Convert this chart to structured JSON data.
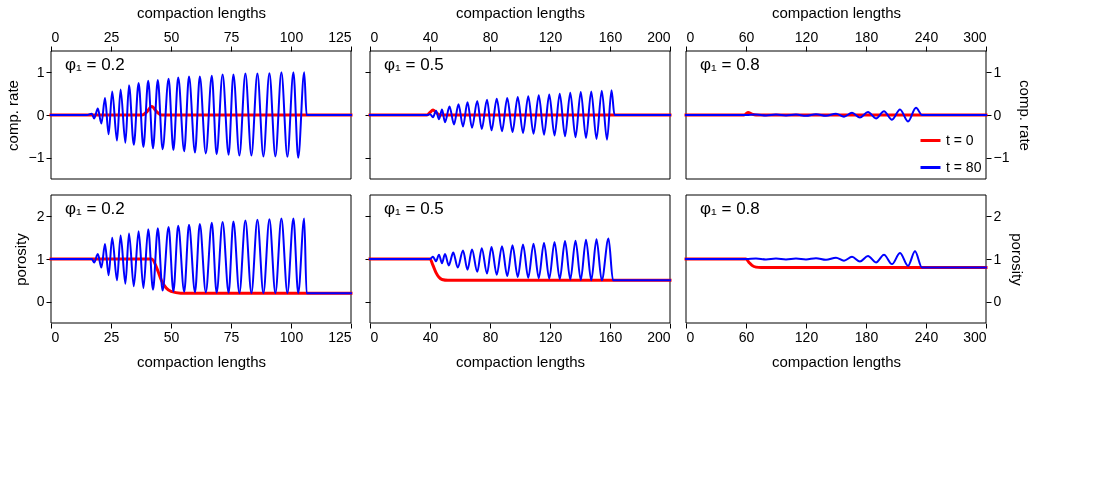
{
  "chart_data": [
    {
      "type": "line",
      "xlabel": "compaction lengths",
      "ylabel": "comp. rate",
      "xlim": [
        0,
        125
      ],
      "xticks": [
        0,
        25,
        50,
        75,
        100,
        125
      ],
      "ylim": [
        -1.5,
        1.5
      ],
      "yticks": [
        -1,
        0,
        1
      ],
      "grid": false,
      "legend": false,
      "annotations": [
        "φ₁ = 0.2"
      ],
      "series": [
        {
          "color": "#ff0000",
          "x": [
            0,
            38,
            40,
            42,
            44,
            46,
            125
          ],
          "values": [
            0,
            0,
            0.08,
            0.2,
            0.08,
            0,
            0
          ]
        },
        {
          "color": "#0000ff",
          "x": [
            0,
            15,
            17,
            18,
            19.5,
            21,
            22.5,
            24,
            25.5,
            27.5,
            29,
            31,
            32.5,
            34.5,
            36.5,
            38.5,
            40.5,
            42.5,
            44.5,
            46.5,
            49,
            51,
            53,
            55.5,
            57.5,
            60,
            62,
            64.5,
            67,
            69,
            71.5,
            74,
            76,
            78.5,
            81,
            83.5,
            86,
            88.5,
            91,
            93.5,
            96,
            98.5,
            101,
            103,
            105.5,
            106.5,
            125
          ],
          "values": [
            0,
            0,
            0.03,
            -0.08,
            0.15,
            -0.2,
            0.4,
            -0.45,
            0.55,
            -0.6,
            0.6,
            -0.65,
            0.7,
            -0.7,
            0.75,
            -0.75,
            0.8,
            -0.78,
            0.82,
            -0.8,
            0.85,
            -0.82,
            0.88,
            -0.85,
            0.9,
            -0.88,
            0.9,
            -0.9,
            0.92,
            -0.92,
            0.95,
            -0.93,
            0.95,
            -0.95,
            0.97,
            -0.95,
            0.97,
            -0.97,
            0.98,
            -0.97,
            1.0,
            -0.98,
            1.0,
            -1.0,
            1.0,
            0,
            0
          ]
        }
      ]
    },
    {
      "type": "line",
      "xlabel": "compaction lengths",
      "xlim": [
        0,
        200
      ],
      "xticks": [
        0,
        40,
        80,
        120,
        160,
        200
      ],
      "ylim": [
        -1.5,
        1.5
      ],
      "yticks": [
        -1,
        0,
        1
      ],
      "grid": false,
      "legend": false,
      "tick_labels": "x",
      "annotations": [
        "φ₁ = 0.5"
      ],
      "series": [
        {
          "color": "#ff0000",
          "x": [
            0,
            38,
            40,
            42,
            44,
            47,
            200
          ],
          "values": [
            0,
            0,
            0.06,
            0.12,
            0.06,
            0,
            0
          ]
        },
        {
          "color": "#0000ff",
          "x": [
            0,
            38,
            40,
            42,
            44,
            46,
            48,
            50,
            53,
            56,
            59,
            62,
            65,
            68,
            71.5,
            74.5,
            78,
            81,
            84.5,
            88,
            91.5,
            95,
            98.5,
            102,
            105.5,
            109,
            112.5,
            116,
            119.5,
            123,
            126.5,
            130,
            133.5,
            137,
            140.5,
            144,
            147.5,
            151,
            154.5,
            158,
            161,
            163,
            200
          ],
          "values": [
            0,
            0,
            0.02,
            -0.05,
            0.1,
            -0.1,
            0.13,
            -0.17,
            0.2,
            -0.22,
            0.25,
            -0.27,
            0.3,
            -0.3,
            0.33,
            -0.33,
            0.36,
            -0.36,
            0.38,
            -0.38,
            0.4,
            -0.4,
            0.42,
            -0.42,
            0.44,
            -0.44,
            0.46,
            -0.46,
            0.48,
            -0.48,
            0.5,
            -0.5,
            0.52,
            -0.52,
            0.54,
            -0.54,
            0.55,
            -0.56,
            0.57,
            -0.58,
            0.58,
            0,
            0
          ]
        }
      ]
    },
    {
      "type": "line",
      "xlabel": "compaction lengths",
      "ylabel": "comp. rate",
      "xlim": [
        0,
        300
      ],
      "xticks": [
        0,
        60,
        120,
        180,
        240,
        300
      ],
      "ylim": [
        -1.5,
        1.5
      ],
      "yticks": [
        -1,
        0,
        1
      ],
      "grid": false,
      "legend": "bottom right",
      "annotations": [
        "φ₁ = 0.8"
      ],
      "series": [
        {
          "name": "t = 0",
          "color": "#ff0000",
          "x": [
            0,
            58,
            62,
            66,
            70,
            300
          ],
          "values": [
            0,
            0,
            0.06,
            0.02,
            0,
            0
          ]
        },
        {
          "name": "t = 80",
          "color": "#0000ff",
          "x": [
            0,
            60,
            70,
            80,
            90,
            100,
            110,
            120,
            130,
            140,
            150,
            158,
            166,
            174,
            182,
            190,
            198,
            206,
            214,
            222,
            230,
            236,
            300
          ],
          "values": [
            0,
            0,
            0.01,
            -0.01,
            0.01,
            -0.01,
            0.01,
            -0.02,
            0.02,
            -0.02,
            0.03,
            -0.04,
            0.05,
            -0.06,
            0.07,
            -0.08,
            0.09,
            -0.11,
            0.13,
            -0.15,
            0.17,
            0,
            0
          ]
        }
      ]
    },
    {
      "type": "line",
      "xlabel": "compaction lengths",
      "ylabel": "porosity",
      "xlim": [
        0,
        125
      ],
      "xticks": [
        0,
        25,
        50,
        75,
        100,
        125
      ],
      "ylim": [
        -0.5,
        2.5
      ],
      "yticks": [
        0,
        1,
        2
      ],
      "grid": false,
      "legend": false,
      "annotations": [
        "φ₁ = 0.2"
      ],
      "series": [
        {
          "color": "#ff0000",
          "x": [
            0,
            42,
            44,
            46,
            48,
            50,
            54,
            125
          ],
          "values": [
            1,
            1,
            0.8,
            0.5,
            0.32,
            0.24,
            0.2,
            0.2
          ]
        },
        {
          "color": "#0000ff",
          "x": [
            0,
            17,
            18,
            19.5,
            21,
            22.5,
            24,
            25.5,
            27.5,
            29,
            31,
            32.5,
            34.5,
            36.5,
            38.5,
            40.5,
            42.5,
            44.5,
            46.5,
            49,
            51,
            53,
            55.5,
            57.5,
            60,
            62,
            64.5,
            67,
            69,
            71.5,
            74,
            76,
            78.5,
            81,
            83.5,
            86,
            88.5,
            91,
            93.5,
            96,
            98.5,
            101,
            103,
            105.5,
            106.5,
            125
          ],
          "values": [
            1,
            1,
            0.92,
            1.12,
            0.8,
            1.35,
            0.62,
            1.5,
            0.5,
            1.55,
            0.42,
            1.6,
            0.36,
            1.65,
            0.32,
            1.7,
            0.28,
            1.72,
            0.26,
            1.75,
            0.24,
            1.78,
            0.23,
            1.8,
            0.22,
            1.82,
            0.22,
            1.85,
            0.21,
            1.87,
            0.21,
            1.88,
            0.2,
            1.9,
            0.2,
            1.92,
            0.2,
            1.93,
            0.2,
            1.95,
            0.2,
            1.95,
            0.2,
            1.95,
            0.2,
            0.2
          ]
        }
      ]
    },
    {
      "type": "line",
      "xlabel": "compaction lengths",
      "xlim": [
        0,
        200
      ],
      "xticks": [
        0,
        40,
        80,
        120,
        160,
        200
      ],
      "ylim": [
        -0.5,
        2.5
      ],
      "yticks": [
        0,
        1,
        2
      ],
      "grid": false,
      "legend": false,
      "tick_labels": "x",
      "annotations": [
        "φ₁ = 0.5"
      ],
      "series": [
        {
          "color": "#ff0000",
          "x": [
            0,
            40,
            42,
            44,
            46,
            48,
            52,
            200
          ],
          "values": [
            1,
            1,
            0.85,
            0.68,
            0.57,
            0.52,
            0.5,
            0.5
          ]
        },
        {
          "color": "#0000ff",
          "x": [
            0,
            40,
            42,
            44,
            46,
            48,
            50,
            52.5,
            55.5,
            58.5,
            62,
            65,
            68,
            71.5,
            74.5,
            78,
            81,
            84.5,
            88,
            91.5,
            95,
            98.5,
            102,
            105.5,
            109,
            112.5,
            116,
            119.5,
            123,
            126.5,
            130,
            133.5,
            137,
            140.5,
            144,
            147.5,
            151,
            154.5,
            159,
            162,
            200
          ],
          "values": [
            1,
            1,
            1.05,
            0.95,
            1.1,
            0.9,
            1.12,
            0.85,
            1.15,
            0.8,
            1.2,
            0.75,
            1.22,
            0.7,
            1.25,
            0.66,
            1.28,
            0.63,
            1.3,
            0.6,
            1.32,
            0.58,
            1.34,
            0.56,
            1.36,
            0.55,
            1.38,
            0.54,
            1.4,
            0.53,
            1.42,
            0.52,
            1.43,
            0.51,
            1.45,
            0.5,
            1.46,
            0.5,
            1.48,
            0.5,
            0.5
          ]
        }
      ]
    },
    {
      "type": "line",
      "xlabel": "compaction lengths",
      "ylabel": "porosity",
      "xlim": [
        0,
        300
      ],
      "xticks": [
        0,
        60,
        120,
        180,
        240,
        300
      ],
      "ylim": [
        -0.5,
        2.5
      ],
      "yticks": [
        0,
        1,
        2
      ],
      "grid": false,
      "legend": false,
      "annotations": [
        "φ₁ = 0.8"
      ],
      "series": [
        {
          "color": "#ff0000",
          "x": [
            0,
            60,
            63,
            66,
            70,
            75,
            300
          ],
          "values": [
            1,
            1,
            0.92,
            0.85,
            0.81,
            0.8,
            0.8
          ]
        },
        {
          "color": "#0000ff",
          "x": [
            0,
            60,
            70,
            80,
            90,
            100,
            110,
            120,
            130,
            140,
            150,
            158,
            166,
            174,
            182,
            190,
            198,
            206,
            214,
            222,
            229,
            236,
            300
          ],
          "values": [
            1,
            1,
            1.01,
            0.99,
            1.01,
            0.99,
            1.01,
            0.99,
            1.02,
            0.98,
            1.03,
            0.96,
            1.05,
            0.94,
            1.07,
            0.92,
            1.1,
            0.88,
            1.14,
            0.84,
            1.18,
            0.8,
            0.8
          ]
        }
      ]
    }
  ]
}
